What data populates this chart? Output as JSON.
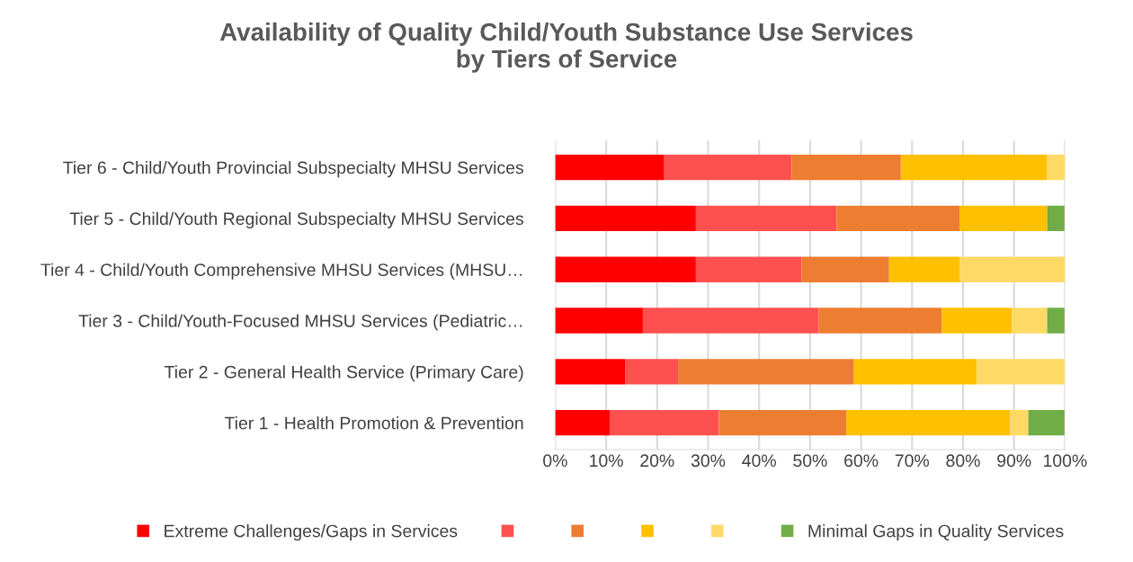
{
  "chart_data": {
    "type": "bar",
    "orientation": "horizontal",
    "stacked": true,
    "title": "Availability of Quality Child/Youth Substance Use Services\nby Tiers of Service",
    "categories": [
      "Tier 6 - Child/Youth Provincial Subspecialty MHSU Services",
      "Tier 5 - Child/Youth Regional Subspecialty MHSU Services",
      "Tier 4 - Child/Youth Comprehensive MHSU Services (MHSU…",
      "Tier 3 - Child/Youth-Focused MHSU Services (Pediatric…",
      "Tier 2 - General Health Service (Primary Care)",
      "Tier 1 - Health Promotion & Prevention"
    ],
    "series": [
      {
        "name": "Extreme Challenges/Gaps in Services",
        "color": "#ff0000",
        "values": [
          21.4,
          27.6,
          27.6,
          17.2,
          13.8,
          10.7
        ]
      },
      {
        "color": "#ff5050",
        "values": [
          25.0,
          27.6,
          20.7,
          34.5,
          10.3,
          21.4
        ]
      },
      {
        "color": "#ed7d31",
        "values": [
          21.4,
          24.1,
          17.2,
          24.1,
          34.5,
          25.0
        ]
      },
      {
        "color": "#ffc000",
        "values": [
          28.6,
          17.2,
          13.8,
          13.8,
          24.1,
          32.1
        ]
      },
      {
        "color": "#ffd966",
        "values": [
          3.6,
          0,
          20.7,
          6.9,
          17.2,
          3.6
        ]
      },
      {
        "name": "Minimal Gaps in Quality Services",
        "color": "#70ad47",
        "values": [
          0,
          3.4,
          0,
          3.4,
          0,
          7.1
        ]
      }
    ],
    "xlim": [
      0,
      100
    ],
    "xticks": [
      {
        "value": 0,
        "label": "0%"
      },
      {
        "value": 10,
        "label": "10%"
      },
      {
        "value": 20,
        "label": "20%"
      },
      {
        "value": 30,
        "label": "30%"
      },
      {
        "value": 40,
        "label": "40%"
      },
      {
        "value": 50,
        "label": "50%"
      },
      {
        "value": 60,
        "label": "60%"
      },
      {
        "value": 70,
        "label": "70%"
      },
      {
        "value": 80,
        "label": "80%"
      },
      {
        "value": 90,
        "label": "90%"
      },
      {
        "value": 100,
        "label": "100%"
      }
    ],
    "grid": "x",
    "legend": "bottom"
  }
}
